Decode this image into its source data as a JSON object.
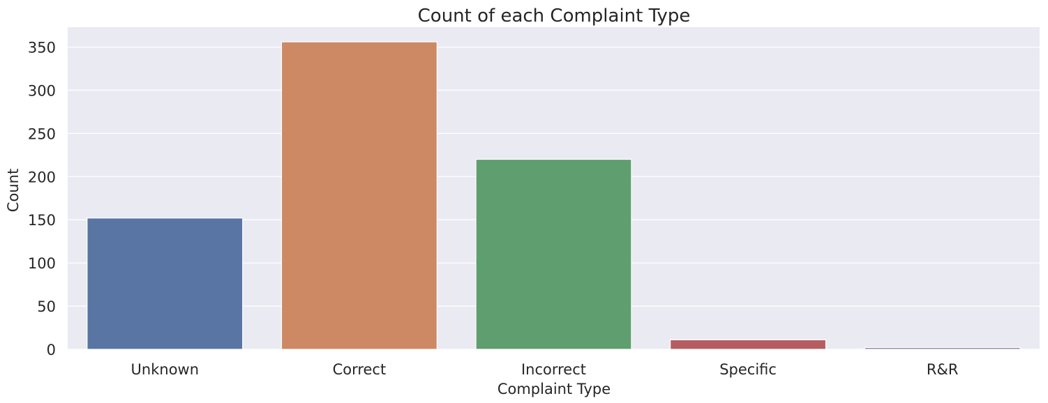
{
  "chart_data": {
    "type": "bar",
    "title": "Count of each Complaint Type",
    "xlabel": "Complaint Type",
    "ylabel": "Count",
    "categories": [
      "Unknown",
      "Correct",
      "Incorrect",
      "Specific",
      "R&R"
    ],
    "values": [
      152,
      356,
      220,
      11,
      2
    ],
    "colors": [
      "#5875a4",
      "#cc8963",
      "#5f9e6e",
      "#b55d60",
      "#857aab"
    ],
    "ylim": [
      0,
      373
    ],
    "yticks": [
      0,
      50,
      100,
      150,
      200,
      250,
      300,
      350
    ],
    "grid": true,
    "background": "#eaeaf2"
  }
}
